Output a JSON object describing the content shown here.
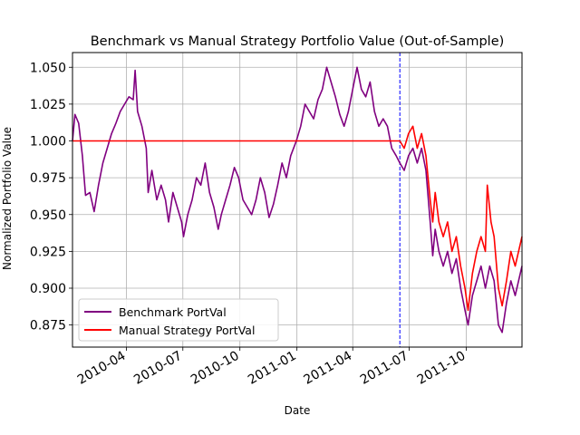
{
  "chart_data": {
    "type": "line",
    "title": "Benchmark vs Manual Strategy Portfolio Value (Out-of-Sample)",
    "xlabel": "Date",
    "ylabel": "Normalized Portfolio Value",
    "xlim": [
      "2010-01-04",
      "2011-12-30"
    ],
    "ylim": [
      0.86,
      1.06
    ],
    "x_ticks": [
      "2010-04",
      "2010-07",
      "2010-10",
      "2011-01",
      "2011-04",
      "2011-07",
      "2011-10"
    ],
    "y_ticks": [
      "0.875",
      "0.900",
      "0.925",
      "0.950",
      "0.975",
      "1.000",
      "1.025",
      "1.050"
    ],
    "grid": true,
    "legend_position": "lower-left",
    "vline": {
      "x": "2011-06-16",
      "color": "#0000ff",
      "style": "dashed"
    },
    "series": [
      {
        "name": "Benchmark PortVal",
        "color": "#800080",
        "points": [
          [
            "2010-01-04",
            1.0
          ],
          [
            "2010-01-08",
            1.018
          ],
          [
            "2010-01-14",
            1.012
          ],
          [
            "2010-01-20",
            0.99
          ],
          [
            "2010-01-25",
            0.963
          ],
          [
            "2010-02-01",
            0.965
          ],
          [
            "2010-02-08",
            0.952
          ],
          [
            "2010-02-15",
            0.97
          ],
          [
            "2010-02-22",
            0.985
          ],
          [
            "2010-03-01",
            0.995
          ],
          [
            "2010-03-08",
            1.005
          ],
          [
            "2010-03-15",
            1.012
          ],
          [
            "2010-03-22",
            1.02
          ],
          [
            "2010-03-29",
            1.025
          ],
          [
            "2010-04-05",
            1.03
          ],
          [
            "2010-04-12",
            1.028
          ],
          [
            "2010-04-15",
            1.048
          ],
          [
            "2010-04-19",
            1.02
          ],
          [
            "2010-04-26",
            1.01
          ],
          [
            "2010-05-03",
            0.995
          ],
          [
            "2010-05-06",
            0.965
          ],
          [
            "2010-05-12",
            0.98
          ],
          [
            "2010-05-20",
            0.96
          ],
          [
            "2010-05-27",
            0.97
          ],
          [
            "2010-06-03",
            0.96
          ],
          [
            "2010-06-08",
            0.945
          ],
          [
            "2010-06-15",
            0.965
          ],
          [
            "2010-06-22",
            0.955
          ],
          [
            "2010-06-29",
            0.945
          ],
          [
            "2010-07-02",
            0.935
          ],
          [
            "2010-07-09",
            0.95
          ],
          [
            "2010-07-16",
            0.96
          ],
          [
            "2010-07-23",
            0.975
          ],
          [
            "2010-07-30",
            0.97
          ],
          [
            "2010-08-06",
            0.985
          ],
          [
            "2010-08-13",
            0.965
          ],
          [
            "2010-08-20",
            0.955
          ],
          [
            "2010-08-27",
            0.94
          ],
          [
            "2010-09-01",
            0.95
          ],
          [
            "2010-09-08",
            0.96
          ],
          [
            "2010-09-15",
            0.97
          ],
          [
            "2010-09-22",
            0.982
          ],
          [
            "2010-09-29",
            0.975
          ],
          [
            "2010-10-06",
            0.96
          ],
          [
            "2010-10-13",
            0.955
          ],
          [
            "2010-10-20",
            0.95
          ],
          [
            "2010-10-27",
            0.96
          ],
          [
            "2010-11-03",
            0.975
          ],
          [
            "2010-11-10",
            0.965
          ],
          [
            "2010-11-17",
            0.948
          ],
          [
            "2010-11-24",
            0.957
          ],
          [
            "2010-12-01",
            0.97
          ],
          [
            "2010-12-08",
            0.985
          ],
          [
            "2010-12-15",
            0.975
          ],
          [
            "2010-12-22",
            0.99
          ],
          [
            "2010-12-31",
            1.0
          ],
          [
            "2011-01-07",
            1.01
          ],
          [
            "2011-01-14",
            1.025
          ],
          [
            "2011-01-21",
            1.02
          ],
          [
            "2011-01-28",
            1.015
          ],
          [
            "2011-02-04",
            1.028
          ],
          [
            "2011-02-11",
            1.035
          ],
          [
            "2011-02-18",
            1.05
          ],
          [
            "2011-02-25",
            1.04
          ],
          [
            "2011-03-04",
            1.03
          ],
          [
            "2011-03-11",
            1.018
          ],
          [
            "2011-03-18",
            1.01
          ],
          [
            "2011-03-25",
            1.02
          ],
          [
            "2011-04-01",
            1.035
          ],
          [
            "2011-04-08",
            1.05
          ],
          [
            "2011-04-15",
            1.035
          ],
          [
            "2011-04-22",
            1.03
          ],
          [
            "2011-04-29",
            1.04
          ],
          [
            "2011-05-06",
            1.02
          ],
          [
            "2011-05-13",
            1.01
          ],
          [
            "2011-05-20",
            1.015
          ],
          [
            "2011-05-27",
            1.01
          ],
          [
            "2011-06-03",
            0.995
          ],
          [
            "2011-06-10",
            0.99
          ],
          [
            "2011-06-16",
            0.985
          ],
          [
            "2011-06-23",
            0.98
          ],
          [
            "2011-06-30",
            0.99
          ],
          [
            "2011-07-07",
            0.995
          ],
          [
            "2011-07-14",
            0.985
          ],
          [
            "2011-07-21",
            0.995
          ],
          [
            "2011-07-28",
            0.98
          ],
          [
            "2011-08-04",
            0.945
          ],
          [
            "2011-08-08",
            0.922
          ],
          [
            "2011-08-12",
            0.94
          ],
          [
            "2011-08-18",
            0.925
          ],
          [
            "2011-08-25",
            0.915
          ],
          [
            "2011-09-01",
            0.925
          ],
          [
            "2011-09-08",
            0.91
          ],
          [
            "2011-09-15",
            0.92
          ],
          [
            "2011-09-22",
            0.9
          ],
          [
            "2011-09-29",
            0.885
          ],
          [
            "2011-10-04",
            0.875
          ],
          [
            "2011-10-11",
            0.895
          ],
          [
            "2011-10-18",
            0.905
          ],
          [
            "2011-10-25",
            0.915
          ],
          [
            "2011-11-01",
            0.9
          ],
          [
            "2011-11-08",
            0.915
          ],
          [
            "2011-11-15",
            0.905
          ],
          [
            "2011-11-22",
            0.875
          ],
          [
            "2011-11-28",
            0.87
          ],
          [
            "2011-12-05",
            0.89
          ],
          [
            "2011-12-12",
            0.905
          ],
          [
            "2011-12-19",
            0.895
          ],
          [
            "2011-12-30",
            0.915
          ]
        ]
      },
      {
        "name": "Manual Strategy PortVal",
        "color": "#ff0000",
        "points": [
          [
            "2010-01-04",
            1.0
          ],
          [
            "2011-06-16",
            1.0
          ],
          [
            "2011-06-23",
            0.995
          ],
          [
            "2011-06-30",
            1.005
          ],
          [
            "2011-07-07",
            1.01
          ],
          [
            "2011-07-14",
            0.995
          ],
          [
            "2011-07-21",
            1.005
          ],
          [
            "2011-07-28",
            0.99
          ],
          [
            "2011-08-04",
            0.96
          ],
          [
            "2011-08-08",
            0.945
          ],
          [
            "2011-08-12",
            0.965
          ],
          [
            "2011-08-18",
            0.945
          ],
          [
            "2011-08-25",
            0.935
          ],
          [
            "2011-09-01",
            0.945
          ],
          [
            "2011-09-08",
            0.925
          ],
          [
            "2011-09-15",
            0.935
          ],
          [
            "2011-09-22",
            0.915
          ],
          [
            "2011-09-29",
            0.9
          ],
          [
            "2011-10-04",
            0.885
          ],
          [
            "2011-10-11",
            0.91
          ],
          [
            "2011-10-18",
            0.925
          ],
          [
            "2011-10-25",
            0.935
          ],
          [
            "2011-11-01",
            0.925
          ],
          [
            "2011-11-04",
            0.97
          ],
          [
            "2011-11-10",
            0.945
          ],
          [
            "2011-11-15",
            0.935
          ],
          [
            "2011-11-22",
            0.9
          ],
          [
            "2011-11-28",
            0.888
          ],
          [
            "2011-12-05",
            0.905
          ],
          [
            "2011-12-12",
            0.925
          ],
          [
            "2011-12-19",
            0.915
          ],
          [
            "2011-12-30",
            0.935
          ]
        ]
      }
    ]
  }
}
